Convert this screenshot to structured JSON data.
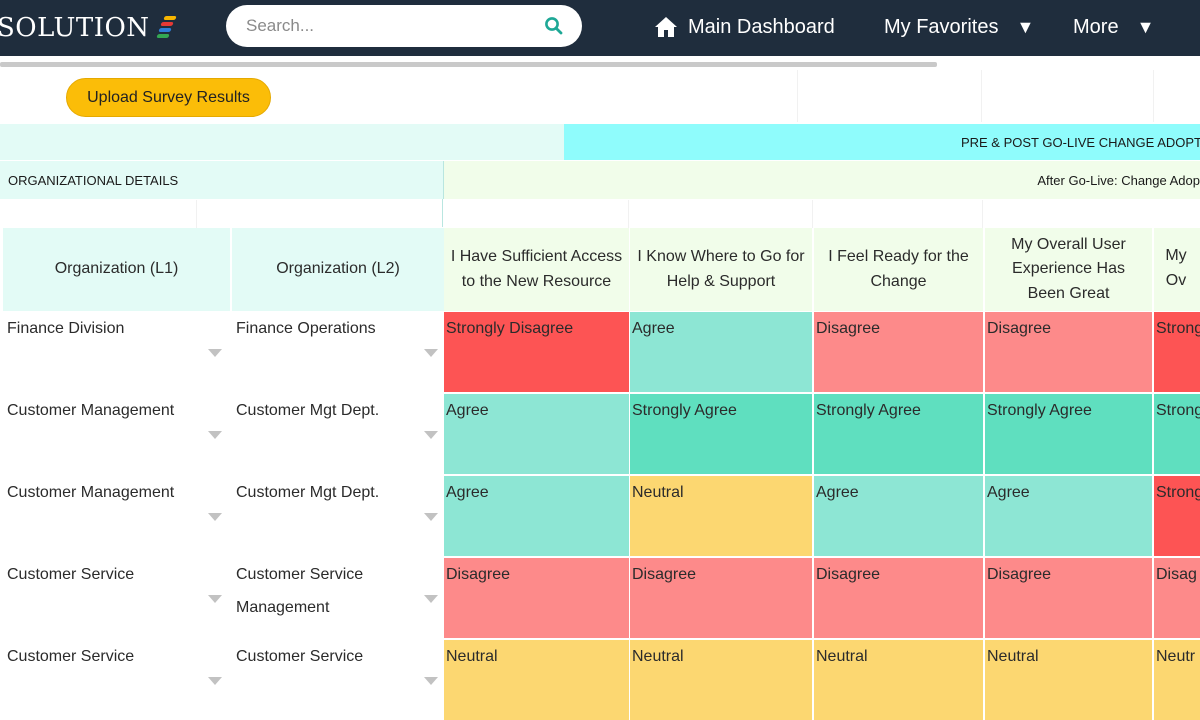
{
  "app": {
    "logo_text": "SOLUTION",
    "logo_colors": [
      "#f7b500",
      "#e53935",
      "#2e7dd7",
      "#34a853"
    ]
  },
  "search": {
    "placeholder": "Search...",
    "icon": "search-icon"
  },
  "nav": {
    "main_dashboard": "Main Dashboard",
    "my_favorites": "My Favorites",
    "more": "More",
    "caret": "▼"
  },
  "toolbar": {
    "upload_label": "Upload Survey Results"
  },
  "bands": {
    "survey_title": "PRE & POST GO-LIVE CHANGE ADOPT",
    "org_details": "ORGANIZATIONAL DETAILS",
    "after_go_live": "After Go-Live: Change Adop"
  },
  "table": {
    "headers": [
      "Organization (L1)",
      "Organization (L2)",
      "I Have Sufficient Access to the New Resource",
      "I Know Where to Go for Help & Support",
      "I Feel Ready for the Change",
      "My Overall User Experience Has Been Great",
      "My Ov"
    ],
    "rows": [
      {
        "l1": "Finance Division",
        "l2": "Finance Operations",
        "responses": [
          "Strongly Disagree",
          "Agree",
          "Disagree",
          "Disagree",
          "Strong"
        ]
      },
      {
        "l1": "Customer Management",
        "l2": "Customer Mgt Dept.",
        "responses": [
          "Agree",
          "Strongly Agree",
          "Strongly Agree",
          "Strongly Agree",
          "Strong"
        ]
      },
      {
        "l1": "Customer Management",
        "l2": "Customer Mgt Dept.",
        "responses": [
          "Agree",
          "Neutral",
          "Agree",
          "Agree",
          "Strong"
        ]
      },
      {
        "l1": "Customer Service",
        "l2": "Customer Service Management",
        "responses": [
          "Disagree",
          "Disagree",
          "Disagree",
          "Disagree",
          "Disag"
        ]
      },
      {
        "l1": "Customer Service",
        "l2": "Customer Service",
        "responses": [
          "Neutral",
          "Neutral",
          "Neutral",
          "Neutral",
          "Neutr"
        ]
      }
    ],
    "row_colors": [
      [
        "#fd5454",
        "#8de6d4",
        "#fd8a8a",
        "#fd8a8a",
        "#fd5454"
      ],
      [
        "#8de6d4",
        "#5fdfbf",
        "#5fdfbf",
        "#5fdfbf",
        "#5fdfbf"
      ],
      [
        "#8de6d4",
        "#fcd771",
        "#8de6d4",
        "#8de6d4",
        "#fd5454"
      ],
      [
        "#fd8a8a",
        "#fd8a8a",
        "#fd8a8a",
        "#fd8a8a",
        "#fd8a8a"
      ],
      [
        "#fcd771",
        "#fcd771",
        "#fcd771",
        "#fcd771",
        "#fcd771"
      ]
    ]
  },
  "colors": {
    "topbar": "#1f2d3d",
    "accent_button": "#fbbd08",
    "header_mint": "#e3fbf6",
    "header_cyan": "#8ffcfc",
    "header_lime": "#f1fdea"
  }
}
